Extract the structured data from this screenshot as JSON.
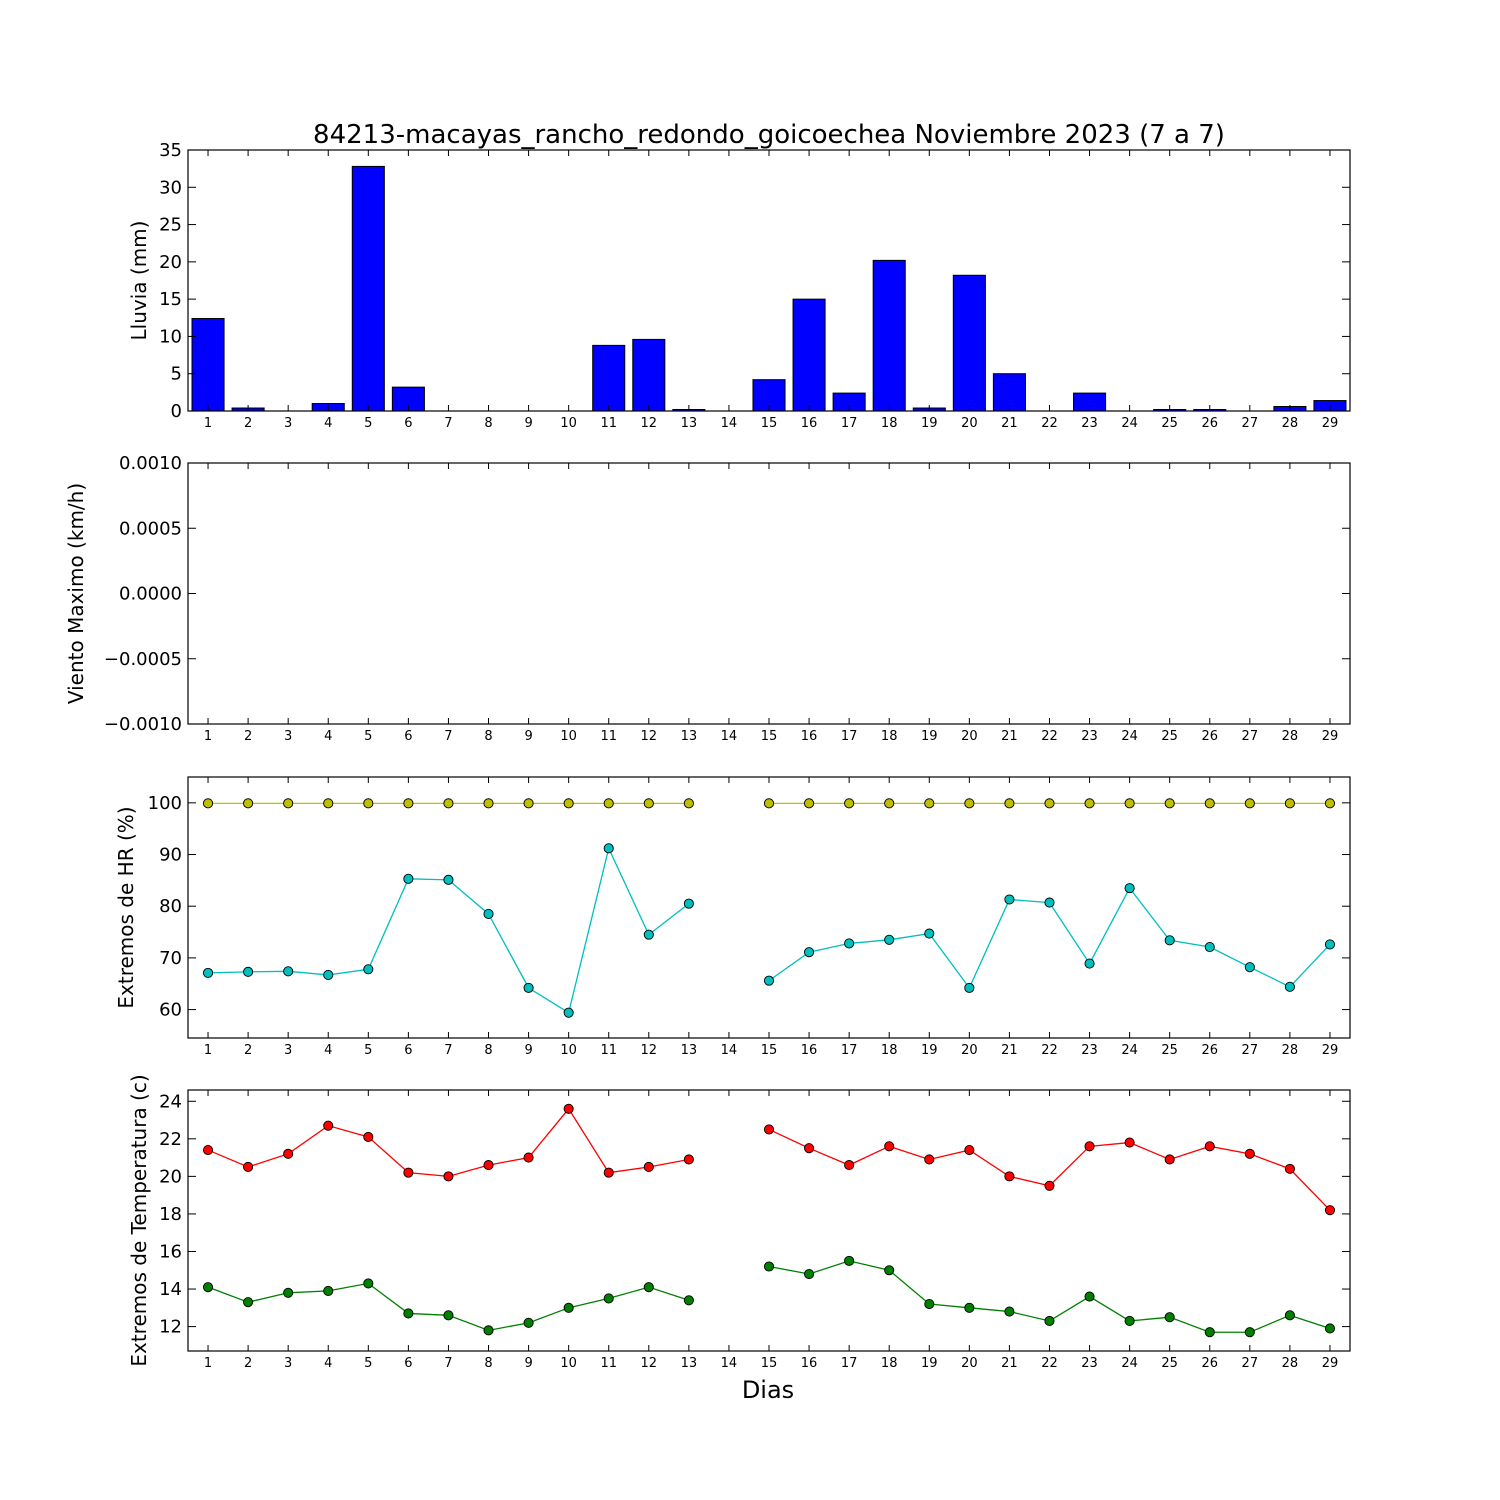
{
  "figure": {
    "title": "84213-macayas_rancho_redondo_goicoechea Noviembre 2023  (7 a 7)",
    "xlabel": "Dias"
  },
  "chart_data": [
    {
      "type": "bar",
      "ylabel": "Lluvia (mm)",
      "ylim": [
        0,
        35
      ],
      "yticks": [
        0,
        5,
        10,
        15,
        20,
        25,
        30,
        35
      ],
      "ytick_labels": [
        "0",
        "5",
        "10",
        "15",
        "20",
        "25",
        "30",
        "35"
      ],
      "x": [
        1,
        2,
        3,
        4,
        5,
        6,
        7,
        8,
        9,
        10,
        11,
        12,
        13,
        14,
        15,
        16,
        17,
        18,
        19,
        20,
        21,
        22,
        23,
        24,
        25,
        26,
        27,
        28,
        29
      ],
      "xlim": [
        0.5,
        29.5
      ],
      "bar_color": "#0000ff",
      "values": [
        12.4,
        0.4,
        0,
        1.0,
        32.8,
        3.2,
        0,
        0,
        0,
        0,
        8.8,
        9.6,
        0.2,
        0,
        4.2,
        15.0,
        2.4,
        20.2,
        0.4,
        18.2,
        5.0,
        0,
        2.4,
        0,
        0.2,
        0.2,
        0,
        0.6,
        1.4
      ]
    },
    {
      "type": "line",
      "ylabel": "Viento Maximo (km/h)",
      "ylim": [
        -0.001,
        0.001
      ],
      "yticks": [
        -0.001,
        -0.0005,
        0,
        0.0005,
        0.001
      ],
      "ytick_labels": [
        "−0.0010",
        "−0.0005",
        "0.0000",
        "0.0005",
        "0.0010"
      ],
      "x": [
        1,
        2,
        3,
        4,
        5,
        6,
        7,
        8,
        9,
        10,
        11,
        12,
        13,
        14,
        15,
        16,
        17,
        18,
        19,
        20,
        21,
        22,
        23,
        24,
        25,
        26,
        27,
        28,
        29
      ],
      "xlim": [
        0.5,
        29.5
      ],
      "series": []
    },
    {
      "type": "line",
      "ylabel": "Extremos de HR (%)",
      "ylim": [
        54.5,
        105
      ],
      "yticks": [
        60,
        70,
        80,
        90,
        100
      ],
      "ytick_labels": [
        "60",
        "70",
        "80",
        "90",
        "100"
      ],
      "x": [
        1,
        2,
        3,
        4,
        5,
        6,
        7,
        8,
        9,
        10,
        11,
        12,
        13,
        14,
        15,
        16,
        17,
        18,
        19,
        20,
        21,
        22,
        23,
        24,
        25,
        26,
        27,
        28,
        29
      ],
      "xlim": [
        0.5,
        29.5
      ],
      "series": [
        {
          "color": "#bfbf00",
          "values": [
            99.9,
            99.9,
            99.9,
            99.9,
            99.9,
            99.9,
            99.9,
            99.9,
            99.9,
            99.9,
            99.9,
            99.9,
            99.9,
            null,
            99.9,
            99.9,
            99.9,
            99.9,
            99.9,
            99.9,
            99.9,
            99.9,
            99.9,
            99.9,
            99.9,
            99.9,
            99.9,
            99.9,
            99.9
          ]
        },
        {
          "color": "#00bfbf",
          "values": [
            67.1,
            67.3,
            67.4,
            66.7,
            67.8,
            85.3,
            85.1,
            78.5,
            64.2,
            59.4,
            91.2,
            74.5,
            80.5,
            null,
            65.6,
            71.1,
            72.8,
            73.5,
            74.7,
            64.2,
            81.3,
            80.7,
            68.9,
            83.5,
            73.4,
            72.1,
            68.2,
            64.4,
            72.6
          ]
        }
      ]
    },
    {
      "type": "line",
      "ylabel": "Extremos de Temperatura (c)",
      "ylim": [
        10.7,
        24.6
      ],
      "yticks": [
        12,
        14,
        16,
        18,
        20,
        22,
        24
      ],
      "ytick_labels": [
        "12",
        "14",
        "16",
        "18",
        "20",
        "22",
        "24"
      ],
      "x": [
        1,
        2,
        3,
        4,
        5,
        6,
        7,
        8,
        9,
        10,
        11,
        12,
        13,
        14,
        15,
        16,
        17,
        18,
        19,
        20,
        21,
        22,
        23,
        24,
        25,
        26,
        27,
        28,
        29
      ],
      "xlim": [
        0.5,
        29.5
      ],
      "series": [
        {
          "color": "#ff0000",
          "values": [
            21.4,
            20.5,
            21.2,
            22.7,
            22.1,
            20.2,
            20.0,
            20.6,
            21.0,
            23.6,
            20.2,
            20.5,
            20.9,
            null,
            22.5,
            21.5,
            20.6,
            21.6,
            20.9,
            21.4,
            20.0,
            19.5,
            21.6,
            21.8,
            20.9,
            21.6,
            21.2,
            20.4,
            18.2
          ]
        },
        {
          "color": "#008000",
          "values": [
            14.1,
            13.3,
            13.8,
            13.9,
            14.3,
            12.7,
            12.6,
            11.8,
            12.2,
            13.0,
            13.5,
            14.1,
            13.4,
            null,
            15.2,
            14.8,
            15.5,
            15.0,
            13.2,
            13.0,
            12.8,
            12.3,
            13.6,
            12.3,
            12.5,
            11.7,
            11.7,
            12.6,
            11.9
          ]
        }
      ]
    }
  ]
}
